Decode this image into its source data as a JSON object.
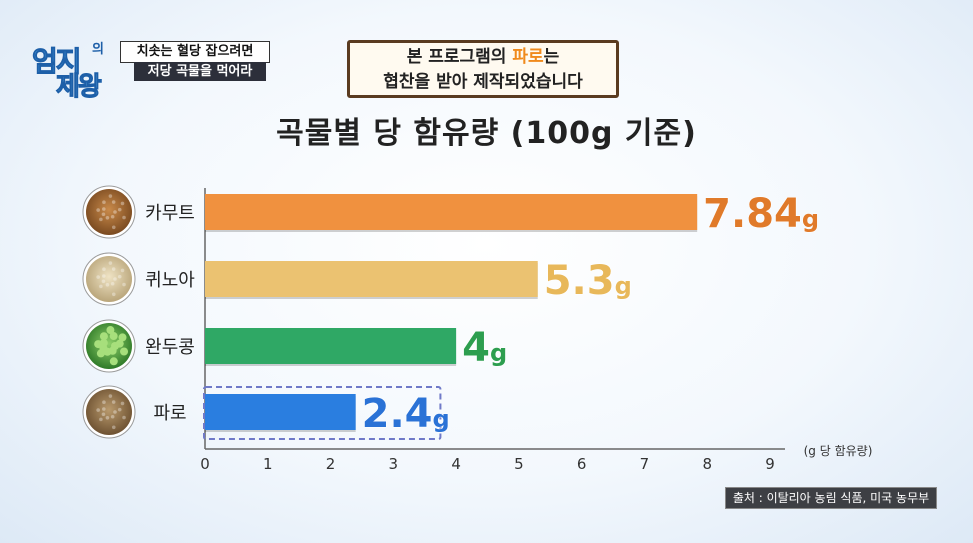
{
  "program": {
    "logo_main": "엄지",
    "logo_small": "의",
    "logo_sub": "제왕",
    "subtitle_line1": "치솟는 혈당 잡으려면",
    "subtitle_line2": "저당 곡물을 먹어라"
  },
  "notice": {
    "line1_pre": "본 프로그램의 ",
    "line1_highlight": "파로",
    "line1_post": "는",
    "line2": "협찬을 받아 제작되었습니다"
  },
  "source": "출처 : 이탈리아 농림 식품, 미국 농무부",
  "chart_data": {
    "type": "bar",
    "orientation": "horizontal",
    "title": "곡물별 당 함유량 (100g 기준)",
    "xlabel": "(g 당 함유량)",
    "categories": [
      "카무트",
      "퀴노아",
      "완두콩",
      "파로"
    ],
    "values": [
      7.84,
      5.3,
      4,
      2.4
    ],
    "value_labels": [
      "7.84g",
      "5.3g",
      "4g",
      "2.4g"
    ],
    "colors": [
      "#f0913f",
      "#ebc271",
      "#2fa865",
      "#2a7ee0"
    ],
    "label_colors": [
      "#e07a2a",
      "#e8b85a",
      "#2d9e4f",
      "#2a72d6"
    ],
    "icons": [
      "kamut-grain-icon",
      "quinoa-grain-icon",
      "pea-icon",
      "farro-grain-icon"
    ],
    "xticks": [
      "0",
      "1",
      "2",
      "3",
      "4",
      "5",
      "6",
      "7",
      "8",
      "9"
    ],
    "xlim": [
      0,
      9
    ],
    "highlight": "파로",
    "grid": false
  }
}
